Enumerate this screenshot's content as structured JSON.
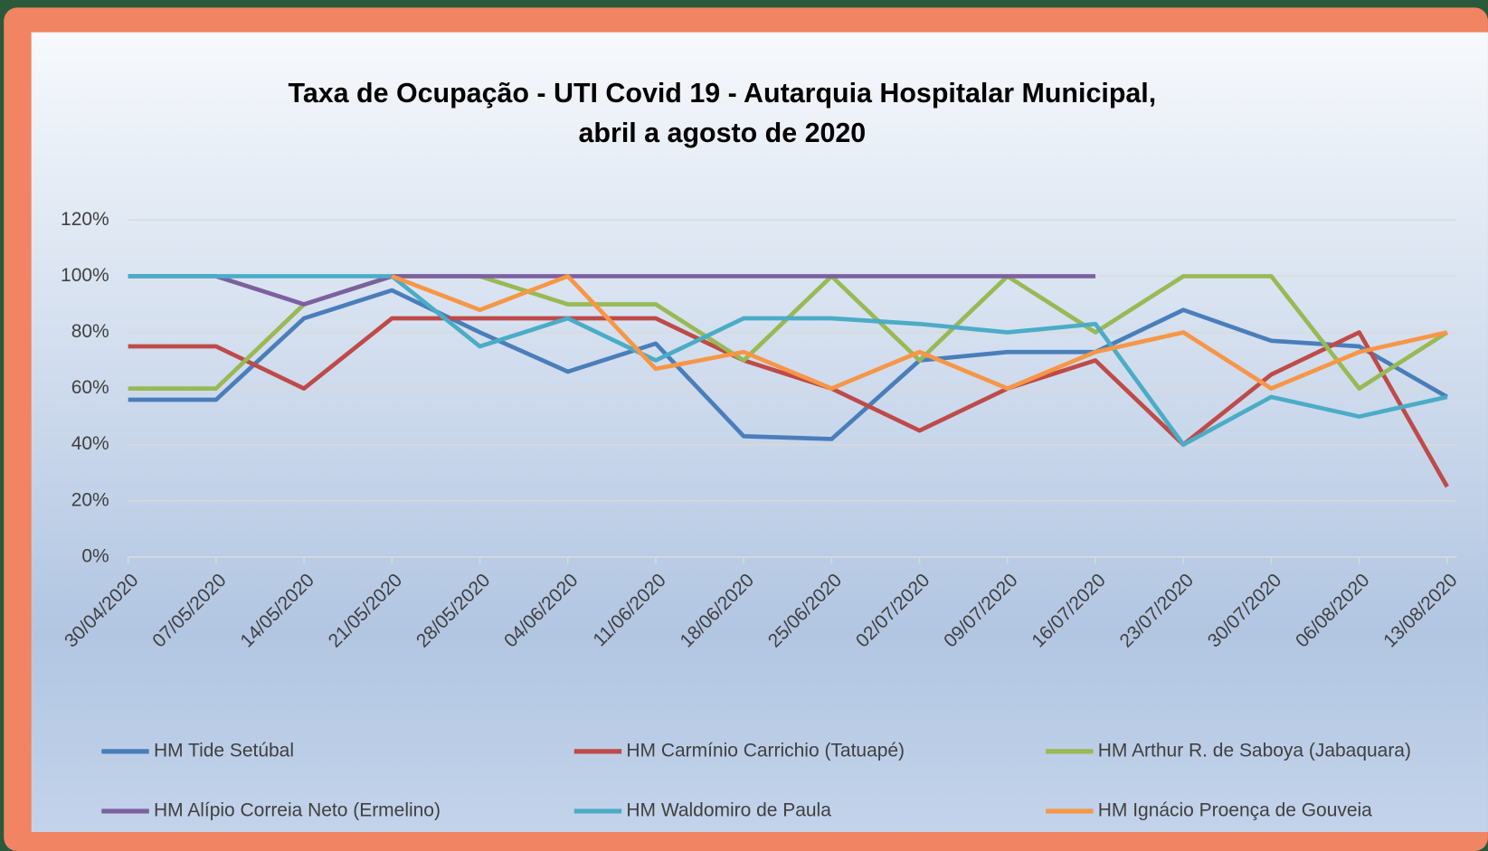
{
  "chart_data": {
    "type": "line",
    "title": [
      "Taxa de Ocupação - UTI Covid 19 - Autarquia Hospitalar Municipal,",
      "abril a agosto de 2020"
    ],
    "categories": [
      "30/04/2020",
      "07/05/2020",
      "14/05/2020",
      "21/05/2020",
      "28/05/2020",
      "04/06/2020",
      "11/06/2020",
      "18/06/2020",
      "25/06/2020",
      "02/07/2020",
      "09/07/2020",
      "16/07/2020",
      "23/07/2020",
      "30/07/2020",
      "06/08/2020",
      "13/08/2020"
    ],
    "series": [
      {
        "name": "HM Tide Setúbal",
        "color": "#4a7ebb",
        "values": [
          56,
          56,
          85,
          95,
          80,
          66,
          76,
          43,
          42,
          70,
          73,
          73,
          88,
          77,
          75,
          57
        ]
      },
      {
        "name": "HM Carmínio Carrichio (Tatuapé)",
        "color": "#be4b48",
        "values": [
          75,
          75,
          60,
          85,
          85,
          85,
          85,
          70,
          60,
          45,
          60,
          70,
          40,
          65,
          80,
          25
        ]
      },
      {
        "name": "HM Arthur R. de Saboya (Jabaquara)",
        "color": "#98b954",
        "values": [
          60,
          60,
          90,
          100,
          100,
          90,
          90,
          70,
          100,
          70,
          100,
          80,
          100,
          100,
          60,
          80
        ]
      },
      {
        "name": "HM Alípio Correia Neto (Ermelino)",
        "color": "#7d60a0",
        "values": [
          100,
          100,
          90,
          100,
          100,
          100,
          100,
          100,
          100,
          100,
          100,
          100,
          null,
          null,
          null,
          null
        ]
      },
      {
        "name": "HM Waldomiro de Paula",
        "color": "#4bacc6",
        "values": [
          100,
          100,
          100,
          100,
          75,
          85,
          70,
          85,
          85,
          83,
          80,
          83,
          40,
          57,
          50,
          57
        ]
      },
      {
        "name": "HM Ignácio Proença de Gouveia",
        "color": "#f79646",
        "values": [
          null,
          null,
          null,
          100,
          88,
          100,
          67,
          73,
          60,
          73,
          60,
          73,
          80,
          60,
          73,
          80
        ]
      }
    ],
    "ylim": [
      0,
      120
    ],
    "yticks": [
      {
        "value": 0,
        "label": "0%"
      },
      {
        "value": 20,
        "label": "20%"
      },
      {
        "value": 40,
        "label": "40%"
      },
      {
        "value": 60,
        "label": "60%"
      },
      {
        "value": 80,
        "label": "80%"
      },
      {
        "value": 100,
        "label": "100%"
      },
      {
        "value": 120,
        "label": "120%"
      }
    ],
    "grid": true,
    "legend": "bottom"
  }
}
